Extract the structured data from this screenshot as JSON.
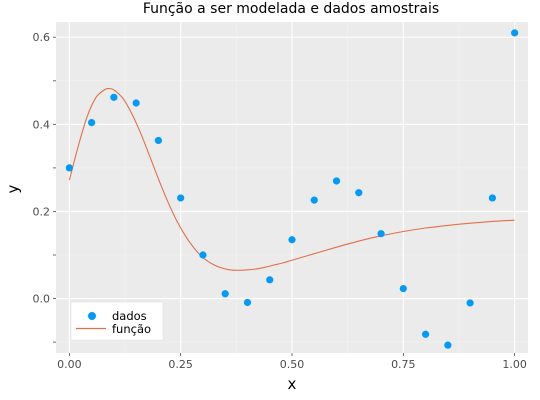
{
  "chart_data": {
    "type": "scatter",
    "title": "Função a ser modelada e dados amostrais",
    "xlabel": "x",
    "ylabel": "y",
    "xlim": [
      -0.03,
      1.03
    ],
    "ylim": [
      -0.125,
      0.635
    ],
    "x_ticks": [
      0.0,
      0.25,
      0.5,
      0.75,
      1.0
    ],
    "x_tick_labels": [
      "0.00",
      "0.25",
      "0.50",
      "0.75",
      "1.00"
    ],
    "x_minor_ticks": [
      0.125,
      0.375,
      0.625,
      0.875
    ],
    "y_ticks": [
      0.0,
      0.2,
      0.4,
      0.6
    ],
    "y_tick_labels": [
      "0.0",
      "0.2",
      "0.4",
      "0.6"
    ],
    "y_minor_ticks": [
      -0.1,
      0.1,
      0.3,
      0.5
    ],
    "grid": true,
    "legend_position": "bottom-left",
    "series": [
      {
        "name": "dados",
        "kind": "scatter",
        "color": "#009af9",
        "x": [
          0.0,
          0.05,
          0.1,
          0.15,
          0.2,
          0.25,
          0.3,
          0.35,
          0.4,
          0.45,
          0.5,
          0.55,
          0.6,
          0.65,
          0.7,
          0.75,
          0.8,
          0.85,
          0.9,
          0.95,
          1.0
        ],
        "y": [
          0.3,
          0.404,
          0.462,
          0.449,
          0.363,
          0.231,
          0.1,
          0.011,
          -0.009,
          0.043,
          0.135,
          0.226,
          0.27,
          0.243,
          0.149,
          0.023,
          -0.082,
          -0.107,
          -0.01,
          0.231,
          0.61
        ]
      },
      {
        "name": "função",
        "kind": "line",
        "color": "#e26f46",
        "x": [
          0.0,
          0.02,
          0.04,
          0.06,
          0.08,
          0.09,
          0.1,
          0.12,
          0.14,
          0.16,
          0.18,
          0.2,
          0.22,
          0.24,
          0.26,
          0.28,
          0.3,
          0.32,
          0.34,
          0.36,
          0.38,
          0.4,
          0.42,
          0.44,
          0.46,
          0.48,
          0.5,
          0.55,
          0.6,
          0.65,
          0.7,
          0.75,
          0.8,
          0.85,
          0.9,
          0.95,
          1.0
        ],
        "y": [
          0.272,
          0.35,
          0.418,
          0.462,
          0.48,
          0.482,
          0.479,
          0.46,
          0.425,
          0.38,
          0.328,
          0.275,
          0.225,
          0.181,
          0.145,
          0.116,
          0.094,
          0.08,
          0.071,
          0.066,
          0.065,
          0.066,
          0.068,
          0.072,
          0.077,
          0.082,
          0.088,
          0.103,
          0.118,
          0.132,
          0.144,
          0.154,
          0.162,
          0.168,
          0.173,
          0.177,
          0.18
        ]
      }
    ]
  },
  "legend": {
    "dados_label": "dados",
    "funcao_label": "função"
  }
}
